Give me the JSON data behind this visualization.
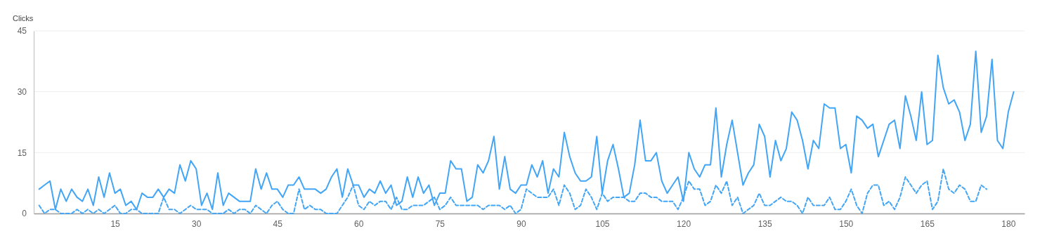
{
  "chart_data": {
    "type": "line",
    "ylabel": "Clicks",
    "xlim": [
      0,
      183
    ],
    "xticks": [
      15,
      30,
      45,
      60,
      75,
      90,
      105,
      120,
      135,
      150,
      165,
      180
    ],
    "ylim": [
      0,
      45
    ],
    "yticks": [
      0,
      15,
      30,
      45
    ],
    "grid": "y",
    "series": [
      {
        "color": "#42a5f5",
        "line_style": "solid",
        "x": [
          1,
          2,
          3,
          4,
          5,
          6,
          7,
          8,
          9,
          10,
          11,
          12,
          13,
          14,
          15,
          16,
          17,
          18,
          19,
          20,
          21,
          22,
          23,
          24,
          25,
          26,
          27,
          28,
          29,
          30,
          31,
          32,
          33,
          34,
          35,
          36,
          37,
          38,
          39,
          40,
          41,
          42,
          43,
          44,
          45,
          46,
          47,
          48,
          49,
          50,
          51,
          52,
          53,
          54,
          55,
          56,
          57,
          58,
          59,
          60,
          61,
          62,
          63,
          64,
          65,
          66,
          67,
          68,
          69,
          70,
          71,
          72,
          73,
          74,
          75,
          76,
          77,
          78,
          79,
          80,
          81,
          82,
          83,
          84,
          85,
          86,
          87,
          88,
          89,
          90,
          91,
          92,
          93,
          94,
          95,
          96,
          97,
          98,
          99,
          100,
          101,
          102,
          103,
          104,
          105,
          106,
          107,
          108,
          109,
          110,
          111,
          112,
          113,
          114,
          115,
          116,
          117,
          118,
          119,
          120,
          121,
          122,
          123,
          124,
          125,
          126,
          127,
          128,
          129,
          130,
          131,
          132,
          133,
          134,
          135,
          136,
          137,
          138,
          139,
          140,
          141,
          142,
          143,
          144,
          145,
          146,
          147,
          148,
          149,
          150,
          151,
          152,
          153,
          154,
          155,
          156,
          157,
          158,
          159,
          160,
          161,
          162,
          163,
          164,
          165,
          166,
          167,
          168,
          169,
          170,
          171,
          172,
          173,
          174,
          175,
          176,
          177,
          178,
          179,
          180,
          181
        ],
        "values": [
          6,
          7,
          8,
          1,
          6,
          3,
          6,
          4,
          3,
          6,
          2,
          9,
          4,
          10,
          5,
          6,
          2,
          3,
          1,
          5,
          4,
          4,
          6,
          4,
          6,
          5,
          12,
          8,
          13,
          11,
          2,
          5,
          1,
          10,
          2,
          5,
          4,
          3,
          3,
          3,
          11,
          6,
          10,
          6,
          6,
          4,
          7,
          7,
          9,
          6,
          6,
          6,
          5,
          6,
          9,
          11,
          4,
          11,
          7,
          7,
          4,
          6,
          5,
          8,
          5,
          7,
          2,
          3,
          9,
          4,
          9,
          5,
          7,
          2,
          5,
          5,
          13,
          11,
          11,
          3,
          4,
          12,
          10,
          13,
          19,
          6,
          14,
          6,
          5,
          7,
          7,
          12,
          9,
          13,
          5,
          11,
          9,
          20,
          14,
          10,
          8,
          8,
          9,
          19,
          5,
          13,
          17,
          11,
          4,
          5,
          12,
          23,
          13,
          13,
          15,
          8,
          5,
          7,
          9,
          3,
          15,
          11,
          9,
          12,
          12,
          26,
          9,
          17,
          23,
          15,
          7,
          10,
          12,
          22,
          19,
          9,
          18,
          13,
          16,
          25,
          23,
          18,
          11,
          18,
          16,
          27,
          26,
          26,
          16,
          17,
          10,
          24,
          23,
          21,
          22,
          14,
          18,
          22,
          23,
          16,
          29,
          24,
          18,
          30,
          17,
          18,
          39,
          31,
          27,
          28,
          25,
          18,
          22,
          40,
          20,
          24,
          38,
          18,
          16,
          25,
          30
        ]
      },
      {
        "color": "#42a5f5",
        "line_style": "dashed",
        "x": [
          1,
          2,
          3,
          4,
          5,
          6,
          7,
          8,
          9,
          10,
          11,
          12,
          13,
          14,
          15,
          16,
          17,
          18,
          19,
          20,
          21,
          22,
          23,
          24,
          25,
          26,
          27,
          28,
          29,
          30,
          31,
          32,
          33,
          34,
          35,
          36,
          37,
          38,
          39,
          40,
          41,
          42,
          43,
          44,
          45,
          46,
          47,
          48,
          49,
          50,
          51,
          52,
          53,
          54,
          55,
          56,
          57,
          58,
          59,
          60,
          61,
          62,
          63,
          64,
          65,
          66,
          67,
          68,
          69,
          70,
          71,
          72,
          73,
          74,
          75,
          76,
          77,
          78,
          79,
          80,
          81,
          82,
          83,
          84,
          85,
          86,
          87,
          88,
          89,
          90,
          91,
          92,
          93,
          94,
          95,
          96,
          97,
          98,
          99,
          100,
          101,
          102,
          103,
          104,
          105,
          106,
          107,
          108,
          109,
          110,
          111,
          112,
          113,
          114,
          115,
          116,
          117,
          118,
          119,
          120,
          121,
          122,
          123,
          124,
          125,
          126,
          127,
          128,
          129,
          130,
          131,
          132,
          133,
          134,
          135,
          136,
          137,
          138,
          139,
          140,
          141,
          142,
          143,
          144,
          145,
          146,
          147,
          148,
          149,
          150,
          151,
          152,
          153,
          154,
          155,
          156,
          157,
          158,
          159,
          160,
          161,
          162,
          163,
          164,
          165,
          166,
          167,
          168,
          169,
          170,
          171,
          172,
          173,
          174,
          175,
          176
        ],
        "values": [
          2,
          0,
          1,
          1,
          0,
          0,
          0,
          1,
          0,
          1,
          0,
          1,
          0,
          1,
          2,
          0,
          0,
          1,
          1,
          0,
          0,
          0,
          0,
          4,
          1,
          1,
          0,
          1,
          2,
          1,
          1,
          1,
          0,
          0,
          0,
          1,
          0,
          1,
          1,
          0,
          2,
          1,
          0,
          2,
          3,
          1,
          0,
          0,
          6,
          1,
          2,
          1,
          1,
          0,
          0,
          0,
          2,
          4,
          7,
          2,
          1,
          3,
          2,
          3,
          3,
          1,
          4,
          1,
          1,
          2,
          2,
          2,
          3,
          4,
          1,
          2,
          4,
          2,
          2,
          2,
          2,
          2,
          1,
          2,
          2,
          2,
          1,
          2,
          0,
          1,
          6,
          5,
          4,
          4,
          4,
          6,
          2,
          7,
          5,
          1,
          2,
          6,
          4,
          1,
          5,
          3,
          4,
          4,
          4,
          3,
          3,
          5,
          5,
          4,
          4,
          3,
          3,
          3,
          1,
          4,
          8,
          6,
          6,
          2,
          3,
          7,
          5,
          8,
          2,
          4,
          0,
          1,
          2,
          5,
          2,
          2,
          3,
          4,
          3,
          3,
          2,
          0,
          4,
          2,
          2,
          2,
          4,
          1,
          1,
          3,
          6,
          2,
          0,
          5,
          7,
          7,
          2,
          3,
          1,
          4,
          9,
          7,
          5,
          7,
          8,
          1,
          3,
          11,
          6,
          5,
          7,
          6,
          3,
          3,
          7,
          6
        ]
      }
    ]
  }
}
